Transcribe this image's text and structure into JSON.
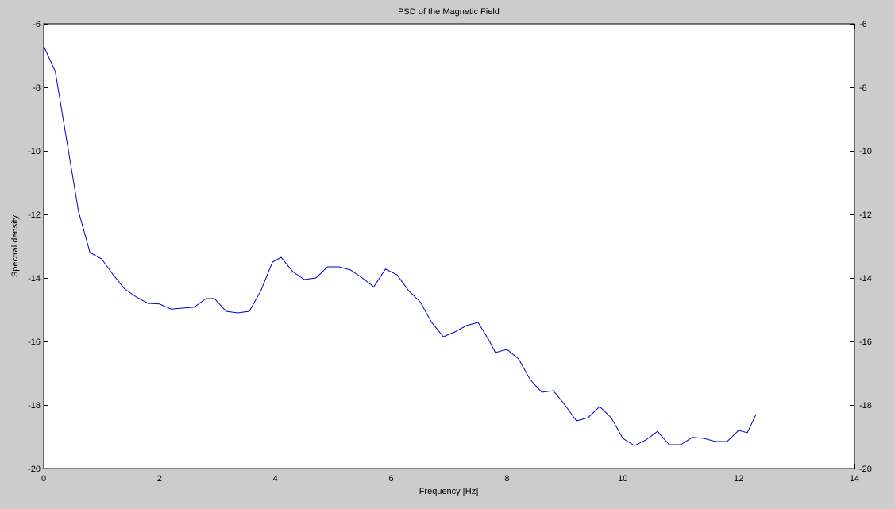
{
  "chart_data": {
    "type": "line",
    "title": "PSD of the Magnetic Field",
    "xlabel": "Frequency [Hz]",
    "ylabel": "Spectral density",
    "xlim": [
      0,
      14
    ],
    "ylim": [
      -20,
      -6
    ],
    "xticks": [
      0,
      2,
      4,
      6,
      8,
      10,
      12,
      14
    ],
    "yticks": [
      -20,
      -18,
      -16,
      -14,
      -12,
      -10,
      -8,
      -6
    ],
    "grid": false,
    "legend": "none",
    "colors": {
      "background": "#cccccc",
      "plot_area": "#ffffff",
      "line": "#0000cc"
    },
    "x": [
      0,
      0.2,
      0.4,
      0.6,
      0.8,
      1.0,
      1.2,
      1.4,
      1.6,
      1.8,
      2.0,
      2.2,
      2.4,
      2.6,
      2.8,
      2.95,
      3.15,
      3.35,
      3.55,
      3.75,
      3.95,
      4.1,
      4.3,
      4.5,
      4.7,
      4.9,
      5.1,
      5.3,
      5.5,
      5.7,
      5.9,
      6.1,
      6.3,
      6.5,
      6.7,
      6.9,
      7.1,
      7.3,
      7.5,
      7.7,
      7.8,
      8.0,
      8.2,
      8.4,
      8.6,
      8.8,
      9.0,
      9.2,
      9.4,
      9.6,
      9.8,
      10.0,
      10.2,
      10.4,
      10.6,
      10.8,
      11.0,
      11.2,
      11.4,
      11.6,
      11.8,
      12.0,
      12.15,
      12.3
    ],
    "y": [
      -6.7,
      -7.5,
      -9.7,
      -11.9,
      -13.2,
      -13.4,
      -13.9,
      -14.35,
      -14.6,
      -14.8,
      -14.82,
      -14.98,
      -14.95,
      -14.92,
      -14.65,
      -14.65,
      -15.05,
      -15.1,
      -15.05,
      -14.4,
      -13.5,
      -13.35,
      -13.8,
      -14.05,
      -14.0,
      -13.65,
      -13.65,
      -13.75,
      -14.0,
      -14.28,
      -13.72,
      -13.9,
      -14.4,
      -14.75,
      -15.4,
      -15.85,
      -15.7,
      -15.5,
      -15.4,
      -16.0,
      -16.35,
      -16.25,
      -16.55,
      -17.2,
      -17.6,
      -17.55,
      -18.0,
      -18.5,
      -18.4,
      -18.05,
      -18.4,
      -19.05,
      -19.28,
      -19.1,
      -18.83,
      -19.25,
      -19.25,
      -19.02,
      -19.05,
      -19.15,
      -19.15,
      -18.8,
      -18.87,
      -18.3
    ]
  }
}
